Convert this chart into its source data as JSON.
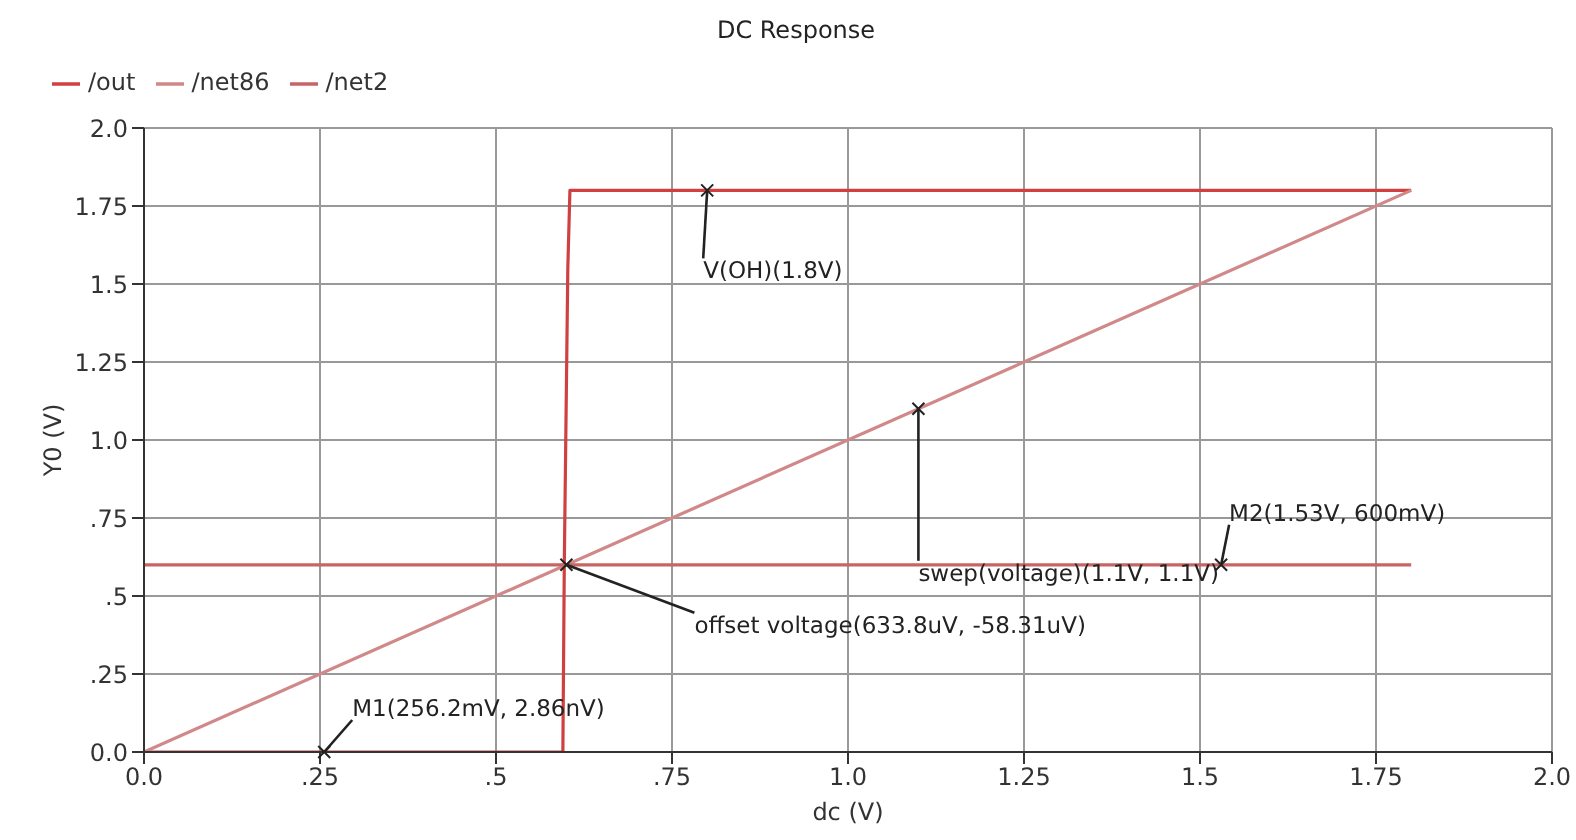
{
  "chart_data": {
    "type": "line",
    "title": "DC Response",
    "xlabel": "dc (V)",
    "ylabel": "Y0 (V)",
    "xlim": [
      0,
      2
    ],
    "ylim": [
      0,
      2
    ],
    "xticks": [
      {
        "value": 0,
        "label": "0.0"
      },
      {
        "value": 0.25,
        "label": ".25"
      },
      {
        "value": 0.5,
        "label": ".5"
      },
      {
        "value": 0.75,
        "label": ".75"
      },
      {
        "value": 1,
        "label": "1.0"
      },
      1.25,
      1.5,
      1.75,
      {
        "value": 2,
        "label": "2.0"
      }
    ],
    "yticks": [
      {
        "value": 0,
        "label": "0.0"
      },
      {
        "value": 0.25,
        "label": ".25"
      },
      {
        "value": 0.5,
        "label": ".5"
      },
      {
        "value": 0.75,
        "label": ".75"
      },
      {
        "value": 1,
        "label": "1.0"
      },
      1.25,
      1.5,
      1.75,
      {
        "value": 2,
        "label": "2.0"
      }
    ],
    "grid": true,
    "legend": "top left",
    "marker": "none",
    "line_style": "solid",
    "series": [
      {
        "name": "/out",
        "color": "#d04040",
        "x": [
          0,
          0.595,
          0.597,
          0.602,
          0.605,
          1.8
        ],
        "values": [
          0,
          0,
          0.6,
          1.55,
          1.8,
          1.8
        ]
      },
      {
        "name": "/net86",
        "color": "#d08888",
        "x": [
          0,
          1.8
        ],
        "values": [
          0,
          1.8
        ]
      },
      {
        "name": "/net2",
        "color": "#c86464",
        "x": [
          0,
          1.8
        ],
        "values": [
          0.6,
          0.6
        ]
      }
    ],
    "annotations": [
      {
        "text": "V(OH)(1.8V)",
        "x": 0.8,
        "y": 1.8
      },
      {
        "text": "swep(voltage)(1.1V, 1.1V)",
        "x": 1.1,
        "y": 1.1
      },
      {
        "text": "M2(1.53V, 600mV)",
        "x": 1.53,
        "y": 0.6
      },
      {
        "text": "offset voltage(633.8uV, -58.31uV)",
        "x": 0.6,
        "y": 0.6
      },
      {
        "text": "M1(256.2mV, 2.86nV)",
        "x": 0.256,
        "y": 0
      }
    ]
  }
}
